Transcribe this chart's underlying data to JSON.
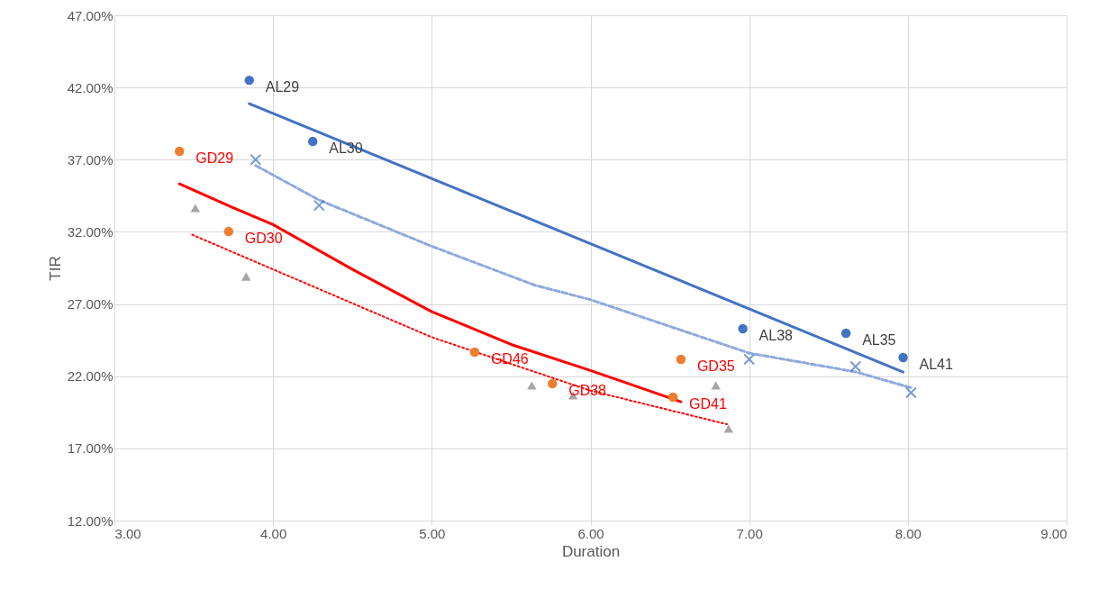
{
  "chart_data": {
    "type": "scatter",
    "xlabel": "Duration",
    "ylabel": "TIR",
    "grid": true,
    "xlim": [
      3,
      9
    ],
    "xticks": [
      {
        "value": 3,
        "label": "3.00"
      },
      {
        "value": 4,
        "label": "4.00"
      },
      {
        "value": 5,
        "label": "5.00"
      },
      {
        "value": 6,
        "label": "6.00"
      },
      {
        "value": 7,
        "label": "7.00"
      },
      {
        "value": 8,
        "label": "8.00"
      },
      {
        "value": 9,
        "label": "9.00"
      }
    ],
    "ylim": [
      12,
      47
    ],
    "yticks": [
      {
        "value": 12,
        "label": "12.00%"
      },
      {
        "value": 17,
        "label": "17.00%"
      },
      {
        "value": 22,
        "label": "22.00%"
      },
      {
        "value": 27,
        "label": "27.00%"
      },
      {
        "value": 32,
        "label": "32.00%"
      },
      {
        "value": 37,
        "label": "37.00%"
      },
      {
        "value": 42,
        "label": "42.00%"
      },
      {
        "value": 47,
        "label": "47.00%"
      }
    ],
    "series": [
      {
        "type": "line",
        "line_style": "dashed",
        "color": "#8faadc",
        "x": [
          3.89,
          4.29,
          5.0,
          5.65,
          6.0,
          7.0,
          7.67,
          8.02
        ],
        "values": [
          36.6,
          34.2,
          31.0,
          28.3,
          27.3,
          23.6,
          22.3,
          21.2
        ]
      },
      {
        "type": "line",
        "line_style": "dotted",
        "color": "#ff0000",
        "x": [
          3.49,
          4.0,
          5.0,
          6.0,
          6.86
        ],
        "values": [
          31.8,
          29.4,
          24.7,
          21.0,
          18.67
        ]
      },
      {
        "type": "line",
        "line_style": "solid",
        "color": "#4472c4",
        "x": [
          3.85,
          7.97
        ],
        "values": [
          40.88,
          22.29
        ]
      },
      {
        "type": "line",
        "line_style": "solid",
        "color": "#ff0000",
        "x": [
          3.41,
          3.7,
          4.0,
          4.5,
          5.0,
          5.5,
          6.0,
          6.57
        ],
        "values": [
          35.33,
          33.9,
          32.5,
          29.4,
          26.47,
          24.2,
          22.4,
          20.23
        ]
      },
      {
        "marker": "circle",
        "color": "#4472c4",
        "x": [
          3.85,
          4.25,
          6.96,
          7.61,
          7.97
        ],
        "values": [
          42.5,
          38.26,
          25.29,
          24.98,
          23.29
        ]
      },
      {
        "marker": "circle",
        "color": "#ed7d31",
        "x": [
          3.41,
          3.72,
          5.27,
          5.76,
          6.57,
          6.52
        ],
        "values": [
          37.58,
          32.02,
          23.67,
          21.48,
          23.17,
          20.55
        ]
      },
      {
        "marker": "cross",
        "color": "#4472c4",
        "x": [
          3.89,
          4.29,
          7.0,
          7.67,
          8.02
        ],
        "values": [
          37.0,
          33.83,
          23.17,
          22.67,
          20.86
        ]
      },
      {
        "marker": "triangle",
        "color": "#a5a5a5",
        "x": [
          3.51,
          3.83,
          5.63,
          5.89,
          6.79,
          6.87
        ],
        "values": [
          33.65,
          28.9,
          21.36,
          20.67,
          21.36,
          18.36
        ]
      }
    ],
    "annotations": [
      {
        "text": "AL29",
        "x": 3.85,
        "y": 42.5
      },
      {
        "text": "AL30",
        "x": 4.25,
        "y": 38.26
      },
      {
        "text": "AL38",
        "x": 6.96,
        "y": 25.29
      },
      {
        "text": "AL35",
        "x": 7.61,
        "y": 24.98
      },
      {
        "text": "AL41",
        "x": 7.97,
        "y": 23.29
      },
      {
        "text": "GD29",
        "x": 3.41,
        "y": 37.58
      },
      {
        "text": "GD30",
        "x": 3.72,
        "y": 32.02
      },
      {
        "text": "GD46",
        "x": 5.27,
        "y": 23.67
      },
      {
        "text": "GD38",
        "x": 5.76,
        "y": 21.48
      },
      {
        "text": "GD35",
        "x": 6.57,
        "y": 23.17
      },
      {
        "text": "GD41",
        "x": 6.52,
        "y": 20.55
      }
    ]
  }
}
